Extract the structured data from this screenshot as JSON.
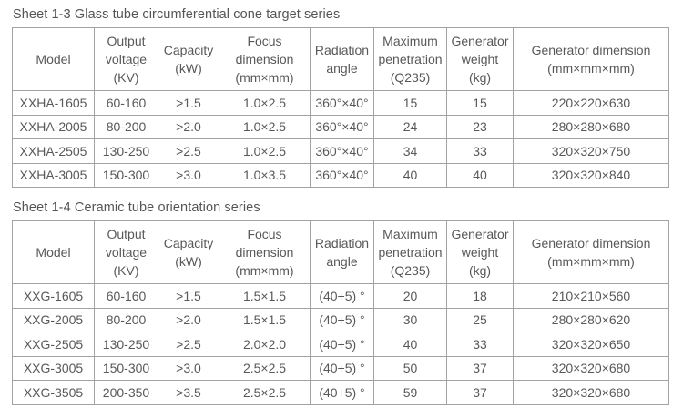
{
  "page": {
    "background_color": "#ffffff",
    "text_color": "#58585a",
    "border_color": "#a2a2a4"
  },
  "tables": [
    {
      "title": "Sheet 1-3 Glass tube circumferential cone target series",
      "headers": [
        "Model",
        "Output\nvoltage\n(KV)",
        "Capacity\n(kW)",
        "Focus\ndimension\n(mm×mm)",
        "Radiation\nangle",
        "Maximum\npenetration\n(Q235)",
        "Generator\nweight\n(kg)",
        "Generator dimension\n(mm×mm×mm)"
      ],
      "rows": [
        [
          "XXHA-1605",
          "60-160",
          ">1.5",
          "1.0×2.5",
          "360°×40°",
          "15",
          "15",
          "220×220×630"
        ],
        [
          "XXHA-2005",
          "80-200",
          ">2.0",
          "1.0×2.5",
          "360°×40°",
          "24",
          "23",
          "280×280×680"
        ],
        [
          "XXHA-2505",
          "130-250",
          ">2.5",
          "1.0×2.5",
          "360°×40°",
          "34",
          "33",
          "320×320×750"
        ],
        [
          "XXHA-3005",
          "150-300",
          ">3.0",
          "1.0×3.5",
          "360°×40°",
          "40",
          "40",
          "320×320×840"
        ]
      ]
    },
    {
      "title": "Sheet 1-4 Ceramic tube orientation series",
      "headers": [
        "Model",
        "Output\nvoltage\n(KV)",
        "Capacity\n(kW)",
        "Focus\ndimension\n(mm×mm)",
        "Radiation\nangle",
        "Maximum\npenetration\n(Q235)",
        "Generator\nweight\n(kg)",
        "Generator dimension\n(mm×mm×mm)"
      ],
      "rows": [
        [
          "XXG-1605",
          "60-160",
          ">1.5",
          "1.5×1.5",
          "(40+5) °",
          "20",
          "18",
          "210×210×560"
        ],
        [
          "XXG-2005",
          "80-200",
          ">2.0",
          "1.5×1.5",
          "(40+5) °",
          "30",
          "25",
          "280×280×620"
        ],
        [
          "XXG-2505",
          "130-250",
          ">2.5",
          "2.0×2.0",
          "(40+5) °",
          "40",
          "33",
          "320×320×650"
        ],
        [
          "XXG-3005",
          "150-300",
          ">3.0",
          "2.5×2.5",
          "(40+5) °",
          "50",
          "37",
          "320×320×680"
        ],
        [
          "XXG-3505",
          "200-350",
          ">3.5",
          "2.5×2.5",
          "(40+5) °",
          "59",
          "37",
          "320×320×680"
        ]
      ]
    }
  ]
}
